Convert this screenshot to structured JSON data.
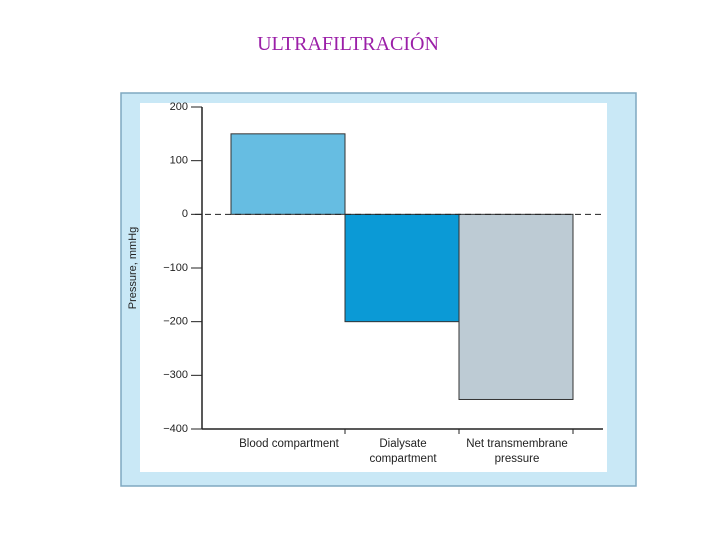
{
  "chart_data": {
    "type": "bar",
    "title": "ULTRAFILTRACIÓN",
    "y_label": "Pressure, mmHg",
    "categories": [
      "Blood compartment",
      "Dialysate compartment",
      "Net transmembrane pressure"
    ],
    "values": [
      150,
      -200,
      -345
    ],
    "colors": [
      "#66bde2",
      "#0b9ad6",
      "#bdcbd4"
    ],
    "ylim": [
      -400,
      200
    ],
    "yticks": [
      {
        "value": -400,
        "label": "−400"
      },
      {
        "value": -300,
        "label": "−300"
      },
      {
        "value": -200,
        "label": "−200"
      },
      {
        "value": -100,
        "label": "−100"
      },
      0,
      100,
      200
    ],
    "zero_line": "dashed"
  }
}
